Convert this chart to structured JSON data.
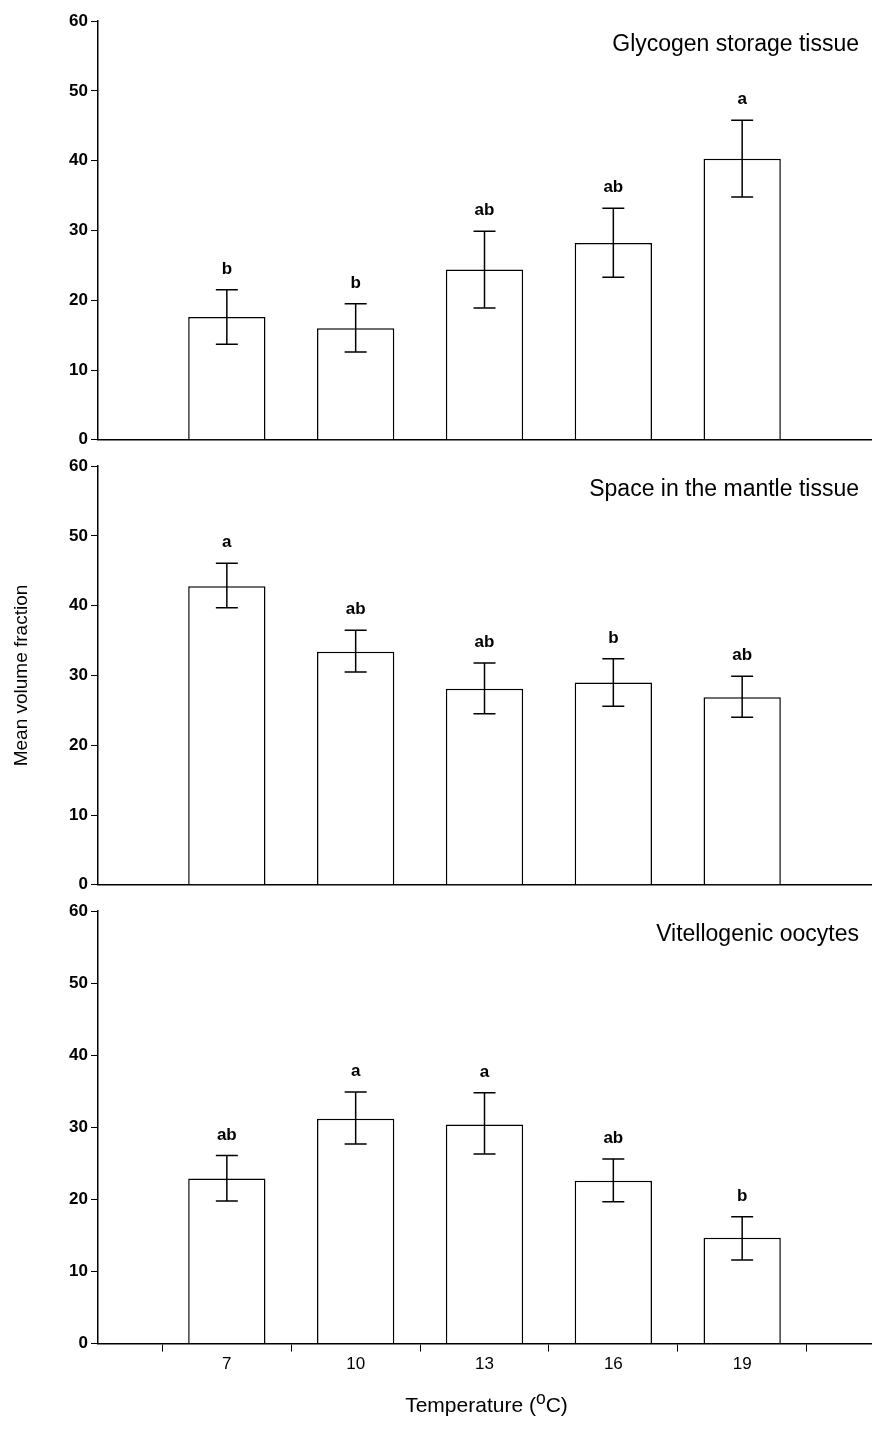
{
  "chart_data": [
    {
      "type": "bar",
      "title": "Glycogen storage tissue",
      "x": [
        7,
        10,
        13,
        16,
        19
      ],
      "values": [
        17.6,
        16.0,
        24.4,
        28.2,
        40.3
      ],
      "errors": [
        [
          13.7,
          21.5
        ],
        [
          12.6,
          19.5
        ],
        [
          18.9,
          29.9
        ],
        [
          23.3,
          33.2
        ],
        [
          34.8,
          45.8
        ]
      ],
      "color": "#ffffff",
      "xlim": [
        4,
        22
      ],
      "xticks": [
        7,
        10,
        13,
        16,
        19
      ],
      "ylim": [
        0,
        60
      ],
      "yticks": [
        0,
        10,
        20,
        30,
        40,
        50,
        60
      ],
      "tick_labels": "y",
      "grid": false,
      "legend": false,
      "annotations": [
        {
          "text": "b",
          "x": 7,
          "y": 21.5
        },
        {
          "text": "b",
          "x": 10,
          "y": 19.5
        },
        {
          "text": "ab",
          "x": 13,
          "y": 29.9
        },
        {
          "text": "ab",
          "x": 16,
          "y": 33.2
        },
        {
          "text": "a",
          "x": 19,
          "y": 45.8
        }
      ]
    },
    {
      "type": "bar",
      "title": "Space in the mantle tissue",
      "ylabel": "Mean volume fraction",
      "x": [
        7,
        10,
        13,
        16,
        19
      ],
      "values": [
        42.8,
        33.4,
        28.1,
        29.0,
        26.9
      ],
      "errors": [
        [
          39.7,
          46.1
        ],
        [
          30.5,
          36.5
        ],
        [
          24.5,
          31.8
        ],
        [
          25.6,
          32.4
        ],
        [
          24.0,
          29.9
        ]
      ],
      "color": "#ffffff",
      "xlim": [
        4,
        22
      ],
      "xticks": [
        7,
        10,
        13,
        16,
        19
      ],
      "ylim": [
        0,
        60
      ],
      "yticks": [
        0,
        10,
        20,
        30,
        40,
        50,
        60
      ],
      "tick_labels": "y",
      "grid": false,
      "legend": false,
      "annotations": [
        {
          "text": "a",
          "x": 7,
          "y": 46.1
        },
        {
          "text": "ab",
          "x": 10,
          "y": 36.5
        },
        {
          "text": "ab",
          "x": 13,
          "y": 31.8
        },
        {
          "text": "b",
          "x": 16,
          "y": 32.4
        },
        {
          "text": "ab",
          "x": 19,
          "y": 29.9
        }
      ]
    },
    {
      "type": "bar",
      "title": "Vitellogenic oocytes",
      "xlabel": "Temperature ($^{o}$C)",
      "x": [
        7,
        10,
        13,
        16,
        19
      ],
      "values": [
        22.9,
        31.2,
        30.4,
        22.6,
        14.7
      ],
      "errors": [
        [
          19.8,
          26.1
        ],
        [
          27.7,
          34.9
        ],
        [
          26.3,
          34.8
        ],
        [
          19.7,
          25.6
        ],
        [
          11.6,
          17.6
        ]
      ],
      "color": "#ffffff",
      "xlim": [
        4,
        22
      ],
      "xticks": [
        7,
        10,
        13,
        16,
        19
      ],
      "ylim": [
        0,
        60
      ],
      "yticks": [
        0,
        10,
        20,
        30,
        40,
        50,
        60
      ],
      "grid": false,
      "legend": false,
      "annotations": [
        {
          "text": "ab",
          "x": 7,
          "y": 26.1
        },
        {
          "text": "a",
          "x": 10,
          "y": 34.9
        },
        {
          "text": "a",
          "x": 13,
          "y": 34.8
        },
        {
          "text": "ab",
          "x": 16,
          "y": 25.6
        },
        {
          "text": "b",
          "x": 19,
          "y": 17.6
        }
      ]
    }
  ]
}
